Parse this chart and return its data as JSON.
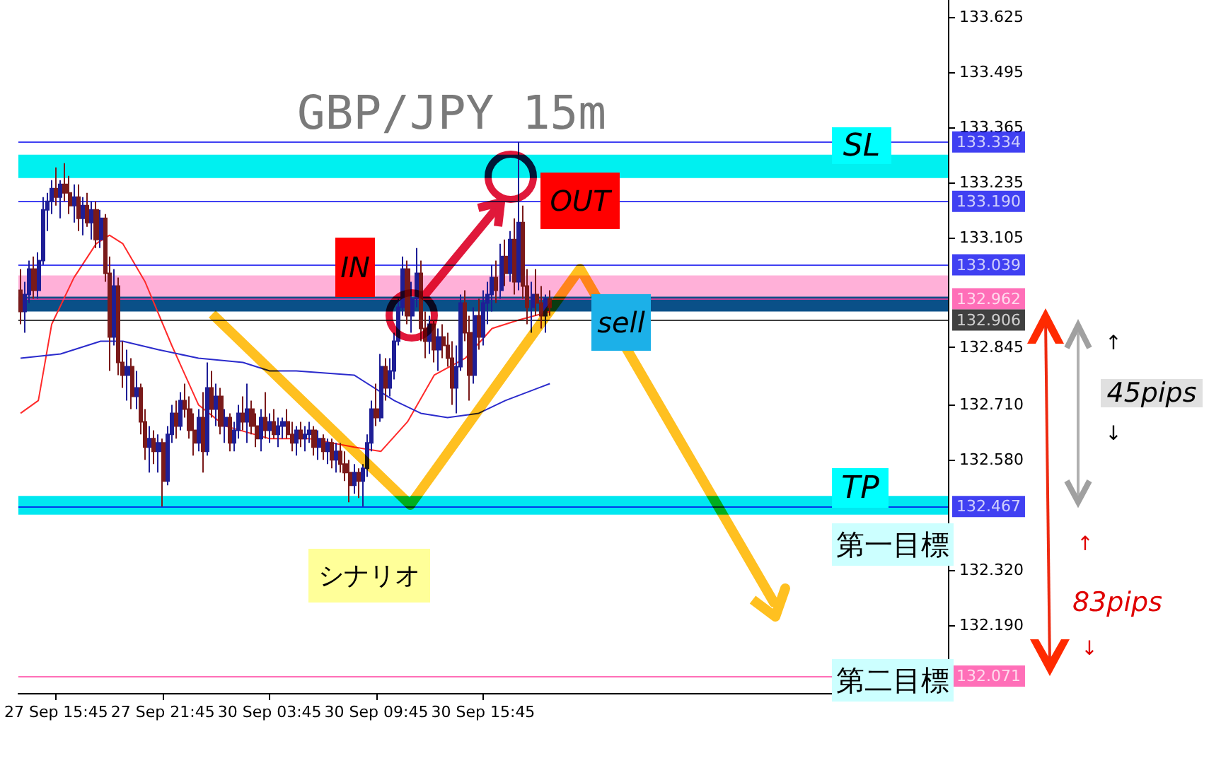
{
  "chart_data": {
    "type": "candlestick",
    "title": "GBP/JPY 15m",
    "categories": [
      null,
      null,
      null,
      null,
      null,
      null,
      null,
      null,
      "27 Sep 15:45",
      null,
      null,
      null,
      null,
      null,
      null,
      null,
      null,
      null,
      null,
      null,
      null,
      null,
      null,
      null,
      null,
      null,
      null,
      null,
      null,
      null,
      null,
      null,
      "27 Sep 21:45",
      null,
      null,
      null,
      null,
      null,
      null,
      null,
      null,
      null,
      null,
      null,
      null,
      null,
      null,
      null,
      null,
      null,
      null,
      null,
      null,
      null,
      null,
      null,
      "30 Sep 03:45",
      null,
      null,
      null,
      null,
      null,
      null,
      null,
      null,
      null,
      null,
      null,
      null,
      null,
      null,
      null,
      null,
      null,
      null,
      null,
      null,
      null,
      null,
      null,
      "30 Sep 09:45",
      null,
      null,
      null,
      null,
      null,
      null,
      null,
      null,
      null,
      null,
      null,
      null,
      null,
      null,
      null,
      null,
      null,
      null,
      null,
      null,
      null,
      null,
      null,
      "30 Sep 15:45",
      null,
      null,
      null,
      null,
      null,
      null,
      null,
      null,
      null,
      null,
      null,
      null,
      null,
      null,
      null,
      null,
      null,
      null,
      null,
      null,
      null,
      null,
      null,
      null,
      null,
      null,
      null,
      null,
      null,
      null,
      null,
      null,
      null,
      null,
      null,
      null,
      null,
      null,
      null,
      null,
      null,
      null,
      null,
      null,
      null,
      null,
      null,
      null,
      null,
      null,
      null,
      null,
      null,
      null,
      null,
      null,
      null,
      null,
      null,
      null,
      null,
      null,
      null,
      null,
      null,
      null,
      null,
      null,
      null,
      null,
      null,
      null,
      null,
      null,
      null,
      null,
      null,
      null,
      null,
      null,
      null,
      null,
      null,
      null,
      null,
      null,
      null,
      null,
      null,
      null,
      null,
      null,
      null,
      null,
      null,
      null,
      null,
      null,
      null,
      null,
      null,
      null,
      null,
      null
    ],
    "ohlc": [
      [
        132.98,
        133.03,
        132.9,
        132.93
      ],
      [
        132.93,
        133.0,
        132.88,
        132.97
      ],
      [
        132.97,
        133.05,
        132.95,
        133.03
      ],
      [
        133.03,
        133.06,
        132.96,
        132.98
      ],
      [
        132.98,
        133.07,
        132.96,
        133.05
      ],
      [
        133.05,
        133.2,
        133.04,
        133.17
      ],
      [
        133.17,
        133.21,
        133.12,
        133.19
      ],
      [
        133.19,
        133.24,
        133.16,
        133.22
      ],
      [
        133.22,
        133.27,
        133.18,
        133.2
      ],
      [
        133.2,
        133.24,
        133.15,
        133.23
      ],
      [
        133.23,
        133.28,
        133.19,
        133.21
      ],
      [
        133.21,
        133.25,
        133.16,
        133.18
      ],
      [
        133.18,
        133.23,
        133.14,
        133.2
      ],
      [
        133.2,
        133.23,
        133.12,
        133.15
      ],
      [
        133.15,
        133.2,
        133.11,
        133.18
      ],
      [
        133.18,
        133.21,
        133.13,
        133.14
      ],
      [
        133.14,
        133.19,
        133.1,
        133.17
      ],
      [
        133.17,
        133.19,
        133.08,
        133.1
      ],
      [
        133.1,
        133.17,
        133.08,
        133.15
      ],
      [
        133.15,
        133.16,
        133.0,
        133.02
      ],
      [
        133.02,
        133.06,
        132.79,
        132.87
      ],
      [
        132.87,
        133.03,
        132.85,
        132.99
      ],
      [
        132.99,
        133.01,
        132.78,
        132.81
      ],
      [
        132.81,
        132.86,
        132.75,
        132.78
      ],
      [
        132.78,
        132.84,
        132.72,
        132.8
      ],
      [
        132.8,
        132.82,
        132.7,
        132.73
      ],
      [
        132.73,
        132.79,
        132.7,
        132.75
      ],
      [
        132.75,
        132.76,
        132.64,
        132.67
      ],
      [
        132.67,
        132.7,
        132.58,
        132.61
      ],
      [
        132.61,
        132.66,
        132.55,
        132.63
      ],
      [
        132.63,
        132.65,
        132.57,
        132.6
      ],
      [
        132.6,
        132.64,
        132.55,
        132.62
      ],
      [
        132.62,
        132.63,
        132.47,
        132.53
      ],
      [
        132.53,
        132.66,
        132.52,
        132.64
      ],
      [
        132.64,
        132.71,
        132.62,
        132.69
      ],
      [
        132.69,
        132.72,
        132.63,
        132.66
      ],
      [
        132.66,
        132.74,
        132.65,
        132.72
      ],
      [
        132.72,
        132.76,
        132.68,
        132.7
      ],
      [
        132.7,
        132.73,
        132.63,
        132.65
      ],
      [
        132.65,
        132.69,
        132.59,
        132.62
      ],
      [
        132.62,
        132.7,
        132.6,
        132.68
      ],
      [
        132.68,
        132.74,
        132.55,
        132.6
      ],
      [
        132.6,
        132.81,
        132.59,
        132.75
      ],
      [
        132.75,
        132.79,
        132.68,
        132.7
      ],
      [
        132.7,
        132.76,
        132.66,
        132.73
      ],
      [
        132.73,
        132.75,
        132.64,
        132.66
      ],
      [
        132.66,
        132.7,
        132.62,
        132.68
      ],
      [
        132.68,
        132.69,
        132.6,
        132.62
      ],
      [
        132.62,
        132.67,
        132.6,
        132.65
      ],
      [
        132.65,
        132.71,
        132.63,
        132.69
      ],
      [
        132.69,
        132.73,
        132.65,
        132.67
      ],
      [
        132.67,
        132.76,
        132.62,
        132.7
      ],
      [
        132.7,
        132.72,
        132.64,
        132.66
      ],
      [
        132.66,
        132.69,
        132.61,
        132.63
      ],
      [
        132.63,
        132.7,
        132.6,
        132.68
      ],
      [
        132.68,
        132.74,
        132.63,
        132.65
      ],
      [
        132.65,
        132.69,
        132.62,
        132.67
      ],
      [
        132.67,
        132.7,
        132.63,
        132.64
      ],
      [
        132.64,
        132.68,
        132.61,
        132.66
      ],
      [
        132.66,
        132.68,
        132.63,
        132.67
      ],
      [
        132.67,
        132.7,
        132.63,
        132.64
      ],
      [
        132.64,
        132.67,
        132.6,
        132.62
      ],
      [
        132.62,
        132.66,
        132.59,
        132.65
      ],
      [
        132.65,
        132.67,
        132.61,
        132.63
      ],
      [
        132.63,
        132.66,
        132.6,
        132.64
      ],
      [
        132.64,
        132.67,
        132.62,
        132.65
      ],
      [
        132.65,
        132.66,
        132.59,
        132.61
      ],
      [
        132.61,
        132.65,
        132.58,
        132.63
      ],
      [
        132.63,
        132.64,
        132.58,
        132.6
      ],
      [
        132.6,
        132.63,
        132.57,
        132.62
      ],
      [
        132.62,
        132.63,
        132.56,
        132.58
      ],
      [
        132.58,
        132.62,
        132.55,
        132.6
      ],
      [
        132.6,
        132.62,
        132.55,
        132.57
      ],
      [
        132.57,
        132.6,
        132.53,
        132.55
      ],
      [
        132.55,
        132.58,
        132.48,
        132.52
      ],
      [
        132.52,
        132.57,
        132.5,
        132.55
      ],
      [
        132.55,
        132.56,
        132.49,
        132.53
      ],
      [
        132.53,
        132.57,
        132.47,
        132.56
      ],
      [
        132.56,
        132.64,
        132.54,
        132.62
      ],
      [
        132.62,
        132.72,
        132.6,
        132.7
      ],
      [
        132.7,
        132.76,
        132.66,
        132.68
      ],
      [
        132.68,
        132.83,
        132.67,
        132.8
      ],
      [
        132.8,
        132.82,
        132.72,
        132.75
      ],
      [
        132.75,
        132.82,
        132.73,
        132.79
      ],
      [
        132.79,
        132.88,
        132.77,
        132.86
      ],
      [
        132.86,
        132.96,
        132.85,
        132.94
      ],
      [
        132.94,
        133.06,
        132.92,
        133.03
      ],
      [
        133.03,
        133.05,
        132.9,
        132.92
      ],
      [
        132.92,
        133.0,
        132.88,
        132.96
      ],
      [
        132.96,
        133.08,
        132.94,
        133.02
      ],
      [
        133.02,
        133.05,
        132.86,
        132.89
      ],
      [
        132.89,
        132.93,
        132.82,
        132.86
      ],
      [
        132.86,
        132.92,
        132.83,
        132.9
      ],
      [
        132.9,
        132.91,
        132.81,
        132.84
      ],
      [
        132.84,
        132.89,
        132.79,
        132.87
      ],
      [
        132.87,
        132.9,
        132.82,
        132.85
      ],
      [
        132.85,
        132.88,
        132.8,
        132.82
      ],
      [
        132.82,
        132.86,
        132.71,
        132.75
      ],
      [
        132.75,
        132.85,
        132.69,
        132.8
      ],
      [
        132.8,
        132.97,
        132.79,
        132.95
      ],
      [
        132.95,
        132.98,
        132.86,
        132.88
      ],
      [
        132.88,
        132.92,
        132.72,
        132.78
      ],
      [
        132.78,
        132.94,
        132.76,
        132.92
      ],
      [
        132.92,
        132.96,
        132.84,
        132.87
      ],
      [
        132.87,
        132.98,
        132.85,
        132.95
      ],
      [
        132.95,
        133.0,
        132.9,
        132.97
      ],
      [
        132.97,
        133.04,
        132.93,
        133.01
      ],
      [
        133.01,
        133.05,
        132.95,
        132.98
      ],
      [
        132.98,
        133.09,
        132.96,
        133.06
      ],
      [
        133.06,
        133.1,
        132.99,
        133.02
      ],
      [
        133.02,
        133.12,
        133.0,
        133.1
      ],
      [
        133.1,
        133.15,
        132.97,
        133.0
      ],
      [
        133.0,
        133.33,
        132.98,
        133.14
      ],
      [
        133.14,
        133.18,
        132.96,
        132.99
      ],
      [
        132.99,
        133.03,
        132.9,
        132.94
      ],
      [
        132.94,
        133.0,
        132.88,
        132.97
      ],
      [
        132.97,
        133.03,
        132.92,
        132.95
      ],
      [
        132.95,
        132.99,
        132.89,
        132.92
      ],
      [
        132.92,
        132.97,
        132.88,
        132.96
      ],
      [
        132.96,
        132.98,
        132.92,
        132.94
      ],
      null,
      null,
      null,
      null,
      null,
      null,
      null,
      null,
      null,
      null,
      null,
      null,
      null,
      null,
      null,
      null,
      null,
      null,
      null,
      null,
      null,
      null,
      null,
      null,
      null,
      null,
      null,
      null,
      null,
      null,
      null,
      null,
      null,
      null,
      null,
      null,
      null,
      null,
      null,
      null,
      null,
      null,
      null,
      null,
      null,
      null,
      null,
      null,
      null,
      null,
      null,
      null,
      null,
      null,
      null,
      null,
      null,
      null,
      null,
      null,
      null,
      null,
      null,
      null,
      null,
      null,
      null,
      null,
      null,
      null,
      null,
      null,
      null,
      null,
      null,
      null,
      null,
      null,
      null,
      null,
      null,
      null,
      null,
      null,
      null,
      null,
      null,
      null,
      null
    ],
    "series": [
      {
        "type": "line",
        "color": "#ff2a2a",
        "values": [
          132.69,
          null,
          null,
          null,
          132.72,
          null,
          null,
          132.9,
          null,
          null,
          null,
          null,
          133.01,
          null,
          null,
          null,
          null,
          133.09,
          null,
          null,
          133.11,
          null,
          null,
          133.09,
          null,
          null,
          null,
          null,
          133.0,
          null,
          null,
          null,
          null,
          null,
          132.85,
          null,
          null,
          null,
          null,
          null,
          132.71,
          null,
          null,
          null,
          null,
          null,
          132.66,
          null,
          null,
          null,
          null,
          null,
          null,
          null,
          null,
          null,
          132.63,
          null,
          null,
          null,
          null,
          null,
          null,
          null,
          null,
          132.63,
          null,
          null,
          null,
          null,
          null,
          null,
          null,
          null,
          null,
          132.61,
          null,
          null,
          null,
          null,
          null,
          132.6,
          null,
          null,
          null,
          null,
          null,
          132.67,
          null,
          null,
          null,
          null,
          null,
          132.78,
          null,
          null,
          null,
          null,
          null,
          null,
          132.82,
          null,
          null,
          null,
          null,
          null,
          132.89,
          null,
          null,
          null,
          null,
          null,
          132.91,
          null,
          null,
          null,
          null,
          null,
          null,
          132.93,
          null,
          null,
          null,
          null,
          null,
          null,
          null,
          null,
          null,
          null,
          null,
          null,
          null,
          null,
          null,
          null,
          null,
          null,
          null,
          null,
          null,
          null,
          null,
          null,
          null,
          null,
          null,
          null,
          null,
          null,
          null,
          null,
          null,
          null,
          null,
          null,
          null,
          null,
          null,
          null,
          null,
          null,
          null,
          null,
          null,
          null,
          null,
          null,
          null,
          null,
          null,
          null,
          null,
          null,
          null,
          null,
          null,
          null,
          null,
          null,
          null,
          null,
          null,
          null,
          null,
          null,
          null,
          null,
          null,
          null,
          null,
          null,
          null,
          null,
          null,
          null,
          null,
          null,
          null,
          null,
          null,
          null,
          null,
          null,
          null,
          null,
          null,
          null,
          null
        ]
      },
      {
        "type": "line",
        "color": "#2b2bcc",
        "values": [
          132.82,
          null,
          null,
          null,
          null,
          null,
          null,
          null,
          null,
          132.83,
          null,
          null,
          null,
          null,
          null,
          null,
          null,
          null,
          132.86,
          null,
          null,
          null,
          null,
          132.86,
          null,
          null,
          null,
          null,
          null,
          null,
          null,
          132.84,
          null,
          null,
          null,
          null,
          null,
          null,
          null,
          null,
          132.82,
          null,
          null,
          null,
          null,
          null,
          null,
          null,
          null,
          null,
          132.81,
          null,
          null,
          null,
          null,
          null,
          132.79,
          null,
          null,
          null,
          null,
          null,
          132.79,
          null,
          null,
          null,
          null,
          null,
          null,
          null,
          null,
          null,
          null,
          null,
          null,
          132.78,
          null,
          null,
          null,
          null,
          null,
          null,
          null,
          null,
          132.72,
          null,
          null,
          null,
          null,
          null,
          132.69,
          null,
          null,
          null,
          null,
          null,
          132.68,
          null,
          null,
          null,
          null,
          null,
          null,
          132.69,
          null,
          null,
          null,
          null,
          null,
          132.72,
          null,
          null,
          null,
          null,
          null,
          null,
          null,
          null,
          null,
          132.76,
          null,
          null,
          null,
          null,
          null,
          null,
          null,
          null,
          null,
          null,
          null,
          null,
          null,
          null,
          null,
          null,
          null,
          null,
          null,
          null,
          null,
          null,
          null,
          null,
          null,
          null,
          null,
          null,
          null,
          null,
          null,
          null,
          null,
          null,
          null,
          null,
          null,
          null,
          null,
          null,
          null,
          null,
          null,
          null,
          null,
          null,
          null,
          null,
          null,
          null,
          null,
          null,
          null,
          null,
          null,
          null,
          null,
          null,
          null,
          null,
          null,
          null,
          null,
          null,
          null,
          null,
          null,
          null,
          null,
          null,
          null,
          null,
          null,
          null,
          null,
          null,
          null,
          null,
          null,
          null,
          null,
          null,
          null,
          null,
          null,
          null,
          null,
          null,
          null
        ]
      }
    ],
    "ylim": [
      132.03,
      133.665
    ],
    "yticks": [
      133.625,
      133.495,
      133.365,
      133.235,
      133.105,
      132.845,
      {
        "value": 132.71,
        "label": "132.710"
      },
      {
        "value": 132.58,
        "label": "132.580"
      },
      {
        "value": 132.32,
        "label": "132.320"
      },
      {
        "value": 132.19,
        "label": "132.190"
      }
    ],
    "marker": "none",
    "grid": false,
    "bands": [
      {
        "axis": "y",
        "from": 133.245,
        "to": 133.3,
        "color": "#00f0f0"
      },
      {
        "axis": "y",
        "from": 132.96,
        "to": 133.015,
        "color": "#ffb0d8"
      },
      {
        "axis": "y",
        "from": 132.93,
        "to": 132.965,
        "color": "#0a5088"
      },
      {
        "axis": "y",
        "from": 132.451,
        "to": 132.495,
        "color": "#00e8f0"
      }
    ],
    "ref_lines": [
      {
        "axis": "y",
        "value": 133.334,
        "label": "133.334",
        "color": "#0000ee"
      },
      {
        "axis": "y",
        "value": 133.19,
        "label": "133.190",
        "color": "#0000ee"
      },
      {
        "axis": "y",
        "value": 133.039,
        "label": "133.039",
        "color": "#0000ee"
      },
      {
        "axis": "y",
        "value": 132.962,
        "label": "132.962",
        "color": "#ff3fa0"
      },
      {
        "axis": "y",
        "value": 132.906,
        "label": "132.906",
        "color": "#000000"
      },
      {
        "axis": "y",
        "value": 132.467,
        "label": "132.467",
        "color": "#0000ee"
      },
      {
        "axis": "y",
        "value": 132.071,
        "label": "132.071",
        "color": "#ff3fa0"
      }
    ],
    "annotations": [
      "SL",
      "TP",
      "IN",
      "OUT",
      "sell",
      "シナリオ",
      "第一目標",
      "第二目標",
      "45pips",
      "83pips",
      "↑",
      "↓",
      "↑",
      "↓"
    ]
  }
}
